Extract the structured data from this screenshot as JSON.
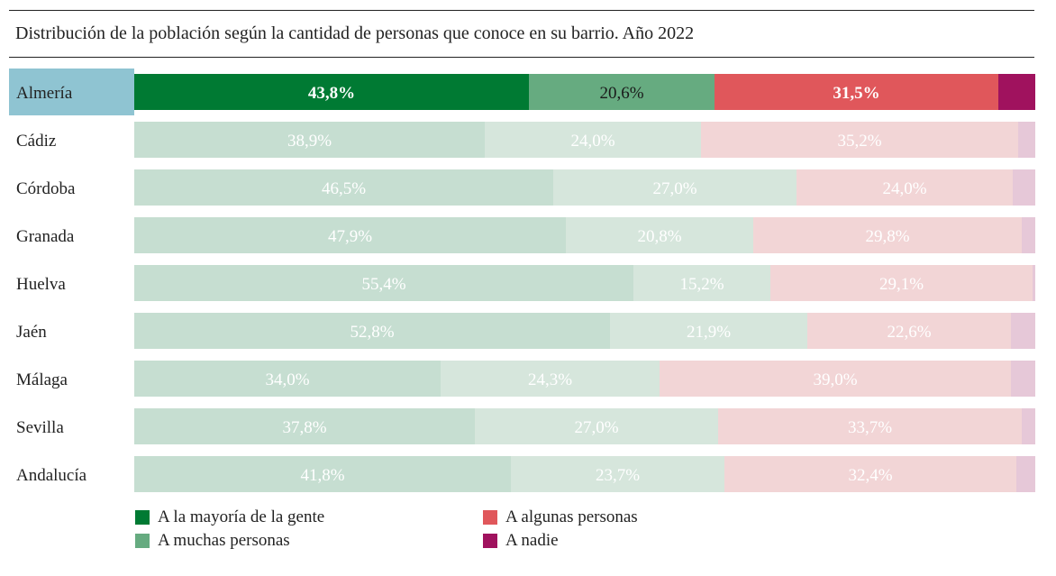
{
  "chart_data": {
    "type": "bar",
    "orientation": "horizontal",
    "stacked": true,
    "percent_stacked": true,
    "title": "Distribución de la población según la cantidad de personas que conoce en su barrio. Año 2022",
    "highlighted_category": "Almería",
    "categories": [
      "Almería",
      "Cádiz",
      "Córdoba",
      "Granada",
      "Huelva",
      "Jaén",
      "Málaga",
      "Sevilla",
      "Andalucía"
    ],
    "series": [
      {
        "name": "A la mayoría de la gente",
        "color": "#007a33",
        "light_color": "#c6ded1",
        "values": [
          43.8,
          38.9,
          46.5,
          47.9,
          55.4,
          52.8,
          34.0,
          37.8,
          41.8
        ]
      },
      {
        "name": "A muchas personas",
        "color": "#66ab80",
        "light_color": "#d6e6dc",
        "values": [
          20.6,
          24.0,
          27.0,
          20.8,
          15.2,
          21.9,
          24.3,
          27.0,
          23.7
        ]
      },
      {
        "name": "A algunas personas",
        "color": "#e0575b",
        "light_color": "#f2d5d6",
        "values": [
          31.5,
          35.2,
          24.0,
          29.8,
          29.1,
          22.6,
          39.0,
          33.7,
          32.4
        ]
      },
      {
        "name": "A nadie",
        "color": "#a0125e",
        "light_color": "#e6c8d8",
        "values": [
          4.1,
          1.9,
          2.5,
          1.5,
          0.3,
          2.7,
          2.7,
          1.5,
          2.1
        ]
      }
    ],
    "value_labels": [
      [
        "43,8%",
        "38,9%",
        "46,5%",
        "47,9%",
        "55,4%",
        "52,8%",
        "34,0%",
        "37,8%",
        "41,8%"
      ],
      [
        "20,6%",
        "24,0%",
        "27,0%",
        "20,8%",
        "15,2%",
        "21,9%",
        "24,3%",
        "27,0%",
        "23,7%"
      ],
      [
        "31,5%",
        "35,2%",
        "24,0%",
        "29,8%",
        "29,1%",
        "22,6%",
        "39,0%",
        "33,7%",
        "32,4%"
      ],
      [
        "",
        "",
        "",
        "",
        "",
        "",
        "",
        "",
        ""
      ]
    ],
    "highlight_color": "#8fc4d2",
    "legend_position": "bottom",
    "grid": false
  }
}
